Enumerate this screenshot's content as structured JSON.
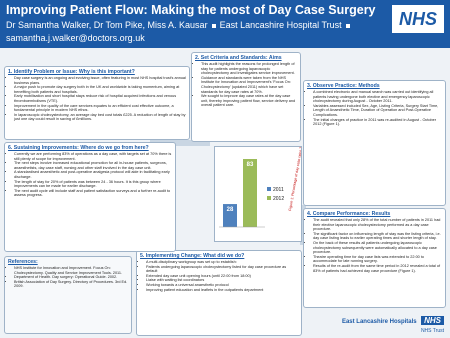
{
  "header": {
    "title": "Improving Patient Flow: Making the most of Day Case Surgery",
    "authors": "Dr Samantha Walker, Dr Tom Pike, Miss A. Kausar",
    "trust": "East Lancashire Hospital Trust",
    "email": "samantha.j.walker@doctors.org.uk",
    "logo": "NHS"
  },
  "sections": [
    {
      "heading": "1. Identify Problem or Issue: Why is this important?",
      "items": [
        "Day case surgery is an ongoing and evolving issue, often featuring in most NHS hospital trust's annual business plans.",
        "A major push to promote day surgery both in the UK and worldwide is taking momentum, aiming at benefiting both patients and hospitals.",
        "Early mobilisation and short hospital stays reduce risk of hospital acquired infections and venous thromboembolisms (VTE).",
        "Improvement in the quality of the care services equates to an efficient cost effective outcome, a fundamental principle in modern NHS ethos.",
        "In laparoscopic cholecystectomy, an average day bed cost totals £225. A reduction of length of stay by just one day could result in saving of £millions."
      ]
    },
    {
      "heading": "2. Set Criteria and Standards: Aims",
      "items": [
        "This audit highlights the reasons for prolonged length of stay for patients undergoing laparoscopic cholecystectomy and investigates service improvement.",
        "Guidance and standards were taken from the NHS Institute for Innovation and Improvement's 'Focus On: Cholecystectomy' (updated 2011) which have set standards for day case rates at 70%.",
        "We sought to improve day case rates at the day case unit, thereby improving patient flow, service delivery and overall patient care."
      ]
    },
    {
      "heading": "3. Observe Practice: Methods",
      "items": [
        "A combined electronic and manual search was carried out identifying all patients having undergone both elective and emergency laparoscopic cholecystectomy during August - October 2011.",
        "Variables assessed included Sex, Age, Listing Criteria, Surgery Start Time, Length of Anaesthetic Time, Duration of Operation and Post-Operative Complications.",
        "The initial changes of practice in 2011 was re-audited in August - October 2012 (Figure 1)."
      ]
    },
    {
      "heading": "4. Compare Performance: Results",
      "items": [
        "The audit revealed that only 28% of the total number of patients in 2011 had their elective laparoscopic cholecystectomy performed as a day case procedure.",
        "The significant factor on influencing length of stay was the listing criteria, i.e. day case listing leads to earlier operating times and shorter length of stay.",
        "On the back of these results all patients undergoing laparoscopic cholecystectomy subsequently were automatically allocated to a day case procedure.",
        "Theatre operating time for day case lists was extended to 22:00 to accommodate for late running surgery.",
        "Results of the re-audit from the same time period in 2012 revealed a total of 83% of patients had achieved day case procedure (Figure 1)."
      ]
    },
    {
      "heading": "5. Implementing Change: What did we do?",
      "items": [
        "A multi-disciplinary workgroup was set up to establish:",
        "Patients undergoing laparoscopic cholecystectomy listed for day case procedure as default",
        "Extended day case unit opening hours (until 22:00 from 18:00)",
        "Liaise with waiting list coordinators",
        "Working towards a universal anaesthetic protocol",
        "Improving patient education and leaflets in the outpatients department"
      ]
    },
    {
      "heading": "6. Sustaining Improvements: Where do we go from here?",
      "items": [
        "Currently we are performing 83% of operations as a day case, with targets set at 70% there is still plenty of scope for improvement.",
        "The next steps involve increased educational promotion for all in-house patients, surgeons, anaesthetists, day case staff, nursing and other staff involved in the day case unit.",
        "A standardised anaesthetic and post-operative analgesia protocol will aide in facilitating early discharge.",
        "The length of stay for 20% of patients was between 24 - 36 hours. It is this group where improvements can be made for earlier discharge.",
        "The next audit cycle will include staff and patient satisfaction surveys and a further re-audit to assess progress."
      ]
    }
  ],
  "figure": {
    "type": "bar",
    "categories": [
      "2011",
      "2012"
    ],
    "values": [
      28,
      83
    ],
    "colors": [
      "#4f81bd",
      "#9bbb59"
    ],
    "caption": "Figure 1: Percentage of day case rates 2011-2012"
  },
  "references": {
    "heading": "References:",
    "items": [
      "NHS Institute for Innovation and Improvement. Focus On: Cholecystectomy. Quality and Service Improvement Tools. 2011.",
      "Department of Health. Day surgery: Operational Guide. 2002.",
      "British Association of Day Surgery. Directory of Procedures. 3rd Ed. 2009."
    ]
  },
  "footer": {
    "name": "East Lancashire Hospitals",
    "logo": "NHS",
    "trust": "NHS Trust"
  }
}
